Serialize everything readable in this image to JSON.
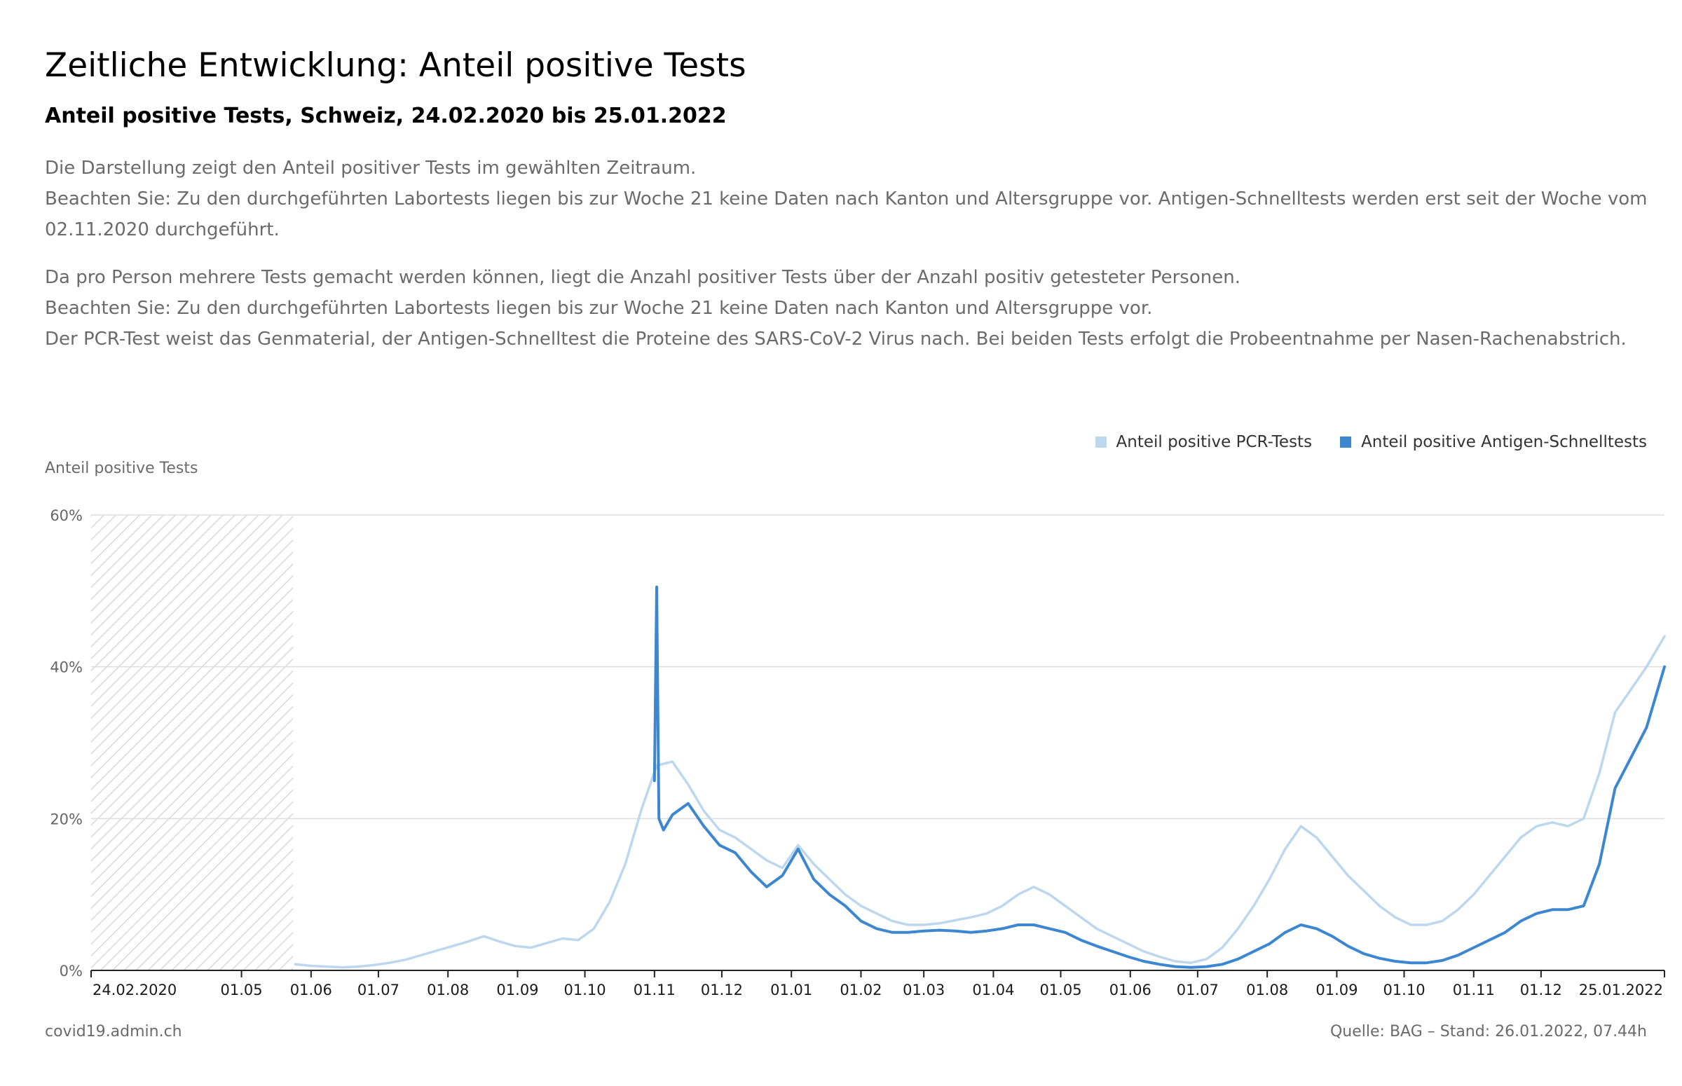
{
  "header": {
    "title": "Zeitliche Entwicklung: Anteil positive Tests",
    "subtitle": "Anteil positive Tests, Schweiz, 24.02.2020 bis 25.01.2022"
  },
  "description": {
    "p1_line1": "Die Darstellung zeigt den Anteil positiver Tests im gewählten Zeitraum.",
    "p1_line2": "Beachten Sie: Zu den durchgeführten Labortests liegen bis zur Woche 21 keine Daten nach Kanton und Altersgruppe vor. Antigen-Schnelltests werden erst seit der Woche vom 02.11.2020 durchgeführt.",
    "p2_line1": "Da pro Person mehrere Tests gemacht werden können, liegt die Anzahl positiver Tests über der Anzahl positiv getesteter Personen.",
    "p2_line2": "Beachten Sie: Zu den durchgeführten Labortests liegen bis zur Woche 21 keine Daten nach Kanton und Altersgruppe vor.",
    "p2_line3": "Der PCR-Test weist das Genmaterial, der Antigen-Schnelltest die Proteine des SARS-CoV-2 Virus nach. Bei beiden Tests erfolgt die Probeentnahme per Nasen-Rachenabstrich."
  },
  "legend": {
    "pcr": "Anteil positive PCR-Tests",
    "antigen": "Anteil positive Antigen-Schnelltests"
  },
  "footer": {
    "source_url": "covid19.admin.ch",
    "source_note": "Quelle: BAG – Stand: 26.01.2022, 07.44h"
  },
  "colors": {
    "pcr": "#bdd7ee",
    "antigen": "#3d87d0",
    "grid": "#dddddd",
    "no_data_hatch": "#d9d9d9"
  },
  "chart_data": {
    "type": "line",
    "ylabel": "Anteil positive Tests",
    "ylim": [
      0,
      60
    ],
    "y_ticks": [
      "0%",
      "20%",
      "40%",
      "60%"
    ],
    "y_tick_values": [
      0,
      20,
      40,
      60
    ],
    "x_range": [
      "2020-02-24",
      "2022-01-25"
    ],
    "x_ticks": [
      {
        "label": "24.02.2020",
        "date": "2020-02-24"
      },
      {
        "label": "01.05",
        "date": "2020-05-01"
      },
      {
        "label": "01.06",
        "date": "2020-06-01"
      },
      {
        "label": "01.07",
        "date": "2020-07-01"
      },
      {
        "label": "01.08",
        "date": "2020-08-01"
      },
      {
        "label": "01.09",
        "date": "2020-09-01"
      },
      {
        "label": "01.10",
        "date": "2020-10-01"
      },
      {
        "label": "01.11",
        "date": "2020-11-01"
      },
      {
        "label": "01.12",
        "date": "2020-12-01"
      },
      {
        "label": "01.01",
        "date": "2021-01-01"
      },
      {
        "label": "01.02",
        "date": "2021-02-01"
      },
      {
        "label": "01.03",
        "date": "2021-03-01"
      },
      {
        "label": "01.04",
        "date": "2021-04-01"
      },
      {
        "label": "01.05",
        "date": "2021-05-01"
      },
      {
        "label": "01.06",
        "date": "2021-06-01"
      },
      {
        "label": "01.07",
        "date": "2021-07-01"
      },
      {
        "label": "01.08",
        "date": "2021-08-01"
      },
      {
        "label": "01.09",
        "date": "2021-09-01"
      },
      {
        "label": "01.10",
        "date": "2021-10-01"
      },
      {
        "label": "01.11",
        "date": "2021-11-01"
      },
      {
        "label": "01.12",
        "date": "2021-12-01"
      },
      {
        "label": "25.01.2022",
        "date": "2022-01-25"
      }
    ],
    "no_data_period": [
      "2020-02-24",
      "2020-05-24"
    ],
    "grid": true,
    "legend_position": "top-right",
    "series": [
      {
        "name": "Anteil positive PCR-Tests",
        "color": "#bdd7ee",
        "points": [
          [
            "2020-05-25",
            0.8
          ],
          [
            "2020-06-01",
            0.6
          ],
          [
            "2020-06-08",
            0.5
          ],
          [
            "2020-06-15",
            0.4
          ],
          [
            "2020-06-22",
            0.5
          ],
          [
            "2020-06-29",
            0.7
          ],
          [
            "2020-07-06",
            1.0
          ],
          [
            "2020-07-13",
            1.4
          ],
          [
            "2020-07-20",
            2.0
          ],
          [
            "2020-07-27",
            2.6
          ],
          [
            "2020-08-03",
            3.2
          ],
          [
            "2020-08-10",
            3.8
          ],
          [
            "2020-08-17",
            4.5
          ],
          [
            "2020-08-24",
            3.8
          ],
          [
            "2020-08-31",
            3.2
          ],
          [
            "2020-09-07",
            3.0
          ],
          [
            "2020-09-14",
            3.6
          ],
          [
            "2020-09-21",
            4.2
          ],
          [
            "2020-09-28",
            4.0
          ],
          [
            "2020-10-05",
            5.5
          ],
          [
            "2020-10-12",
            9.0
          ],
          [
            "2020-10-19",
            14.0
          ],
          [
            "2020-10-26",
            21.0
          ],
          [
            "2020-11-02",
            27.0
          ],
          [
            "2020-11-09",
            27.5
          ],
          [
            "2020-11-16",
            24.5
          ],
          [
            "2020-11-23",
            21.0
          ],
          [
            "2020-11-30",
            18.5
          ],
          [
            "2020-12-07",
            17.5
          ],
          [
            "2020-12-14",
            16.0
          ],
          [
            "2020-12-21",
            14.5
          ],
          [
            "2020-12-28",
            13.5
          ],
          [
            "2021-01-04",
            16.5
          ],
          [
            "2021-01-11",
            14.0
          ],
          [
            "2021-01-18",
            12.0
          ],
          [
            "2021-01-25",
            10.0
          ],
          [
            "2021-02-01",
            8.5
          ],
          [
            "2021-02-08",
            7.5
          ],
          [
            "2021-02-15",
            6.5
          ],
          [
            "2021-02-22",
            6.0
          ],
          [
            "2021-03-01",
            6.0
          ],
          [
            "2021-03-08",
            6.2
          ],
          [
            "2021-03-15",
            6.6
          ],
          [
            "2021-03-22",
            7.0
          ],
          [
            "2021-03-29",
            7.5
          ],
          [
            "2021-04-05",
            8.5
          ],
          [
            "2021-04-12",
            10.0
          ],
          [
            "2021-04-19",
            11.0
          ],
          [
            "2021-04-26",
            10.0
          ],
          [
            "2021-05-03",
            8.5
          ],
          [
            "2021-05-10",
            7.0
          ],
          [
            "2021-05-17",
            5.5
          ],
          [
            "2021-05-24",
            4.5
          ],
          [
            "2021-05-31",
            3.5
          ],
          [
            "2021-06-07",
            2.5
          ],
          [
            "2021-06-14",
            1.8
          ],
          [
            "2021-06-21",
            1.2
          ],
          [
            "2021-06-28",
            1.0
          ],
          [
            "2021-07-05",
            1.5
          ],
          [
            "2021-07-12",
            3.0
          ],
          [
            "2021-07-19",
            5.5
          ],
          [
            "2021-07-26",
            8.5
          ],
          [
            "2021-08-02",
            12.0
          ],
          [
            "2021-08-09",
            16.0
          ],
          [
            "2021-08-16",
            19.0
          ],
          [
            "2021-08-23",
            17.5
          ],
          [
            "2021-08-30",
            15.0
          ],
          [
            "2021-09-06",
            12.5
          ],
          [
            "2021-09-13",
            10.5
          ],
          [
            "2021-09-20",
            8.5
          ],
          [
            "2021-09-27",
            7.0
          ],
          [
            "2021-10-04",
            6.0
          ],
          [
            "2021-10-11",
            6.0
          ],
          [
            "2021-10-18",
            6.5
          ],
          [
            "2021-10-25",
            8.0
          ],
          [
            "2021-11-01",
            10.0
          ],
          [
            "2021-11-08",
            12.5
          ],
          [
            "2021-11-15",
            15.0
          ],
          [
            "2021-11-22",
            17.5
          ],
          [
            "2021-11-29",
            19.0
          ],
          [
            "2021-12-06",
            19.5
          ],
          [
            "2021-12-13",
            19.0
          ],
          [
            "2021-12-20",
            20.0
          ],
          [
            "2021-12-27",
            26.0
          ],
          [
            "2022-01-03",
            34.0
          ],
          [
            "2022-01-10",
            37.0
          ],
          [
            "2022-01-17",
            40.0
          ],
          [
            "2022-01-25",
            44.0
          ]
        ]
      },
      {
        "name": "Anteil positive Antigen-Schnelltests",
        "color": "#3d87d0",
        "points": [
          [
            "2020-11-01",
            25.0
          ],
          [
            "2020-11-02",
            50.5
          ],
          [
            "2020-11-03",
            20.0
          ],
          [
            "2020-11-05",
            18.5
          ],
          [
            "2020-11-09",
            20.5
          ],
          [
            "2020-11-16",
            22.0
          ],
          [
            "2020-11-23",
            19.0
          ],
          [
            "2020-11-30",
            16.5
          ],
          [
            "2020-12-07",
            15.5
          ],
          [
            "2020-12-14",
            13.0
          ],
          [
            "2020-12-21",
            11.0
          ],
          [
            "2020-12-28",
            12.5
          ],
          [
            "2021-01-04",
            16.0
          ],
          [
            "2021-01-11",
            12.0
          ],
          [
            "2021-01-18",
            10.0
          ],
          [
            "2021-01-25",
            8.5
          ],
          [
            "2021-02-01",
            6.5
          ],
          [
            "2021-02-08",
            5.5
          ],
          [
            "2021-02-15",
            5.0
          ],
          [
            "2021-02-22",
            5.0
          ],
          [
            "2021-03-01",
            5.2
          ],
          [
            "2021-03-08",
            5.3
          ],
          [
            "2021-03-15",
            5.2
          ],
          [
            "2021-03-22",
            5.0
          ],
          [
            "2021-03-29",
            5.2
          ],
          [
            "2021-04-05",
            5.5
          ],
          [
            "2021-04-12",
            6.0
          ],
          [
            "2021-04-19",
            6.0
          ],
          [
            "2021-04-26",
            5.5
          ],
          [
            "2021-05-03",
            5.0
          ],
          [
            "2021-05-10",
            4.0
          ],
          [
            "2021-05-17",
            3.2
          ],
          [
            "2021-05-24",
            2.5
          ],
          [
            "2021-05-31",
            1.8
          ],
          [
            "2021-06-07",
            1.2
          ],
          [
            "2021-06-14",
            0.8
          ],
          [
            "2021-06-21",
            0.5
          ],
          [
            "2021-06-28",
            0.4
          ],
          [
            "2021-07-05",
            0.5
          ],
          [
            "2021-07-12",
            0.8
          ],
          [
            "2021-07-19",
            1.5
          ],
          [
            "2021-07-26",
            2.5
          ],
          [
            "2021-08-02",
            3.5
          ],
          [
            "2021-08-09",
            5.0
          ],
          [
            "2021-08-16",
            6.0
          ],
          [
            "2021-08-23",
            5.5
          ],
          [
            "2021-08-30",
            4.5
          ],
          [
            "2021-09-06",
            3.2
          ],
          [
            "2021-09-13",
            2.2
          ],
          [
            "2021-09-20",
            1.6
          ],
          [
            "2021-09-27",
            1.2
          ],
          [
            "2021-10-04",
            1.0
          ],
          [
            "2021-10-11",
            1.0
          ],
          [
            "2021-10-18",
            1.3
          ],
          [
            "2021-10-25",
            2.0
          ],
          [
            "2021-11-01",
            3.0
          ],
          [
            "2021-11-08",
            4.0
          ],
          [
            "2021-11-15",
            5.0
          ],
          [
            "2021-11-22",
            6.5
          ],
          [
            "2021-11-29",
            7.5
          ],
          [
            "2021-12-06",
            8.0
          ],
          [
            "2021-12-13",
            8.0
          ],
          [
            "2021-12-20",
            8.5
          ],
          [
            "2021-12-27",
            14.0
          ],
          [
            "2022-01-03",
            24.0
          ],
          [
            "2022-01-10",
            28.0
          ],
          [
            "2022-01-17",
            32.0
          ],
          [
            "2022-01-25",
            40.0
          ]
        ]
      }
    ]
  }
}
